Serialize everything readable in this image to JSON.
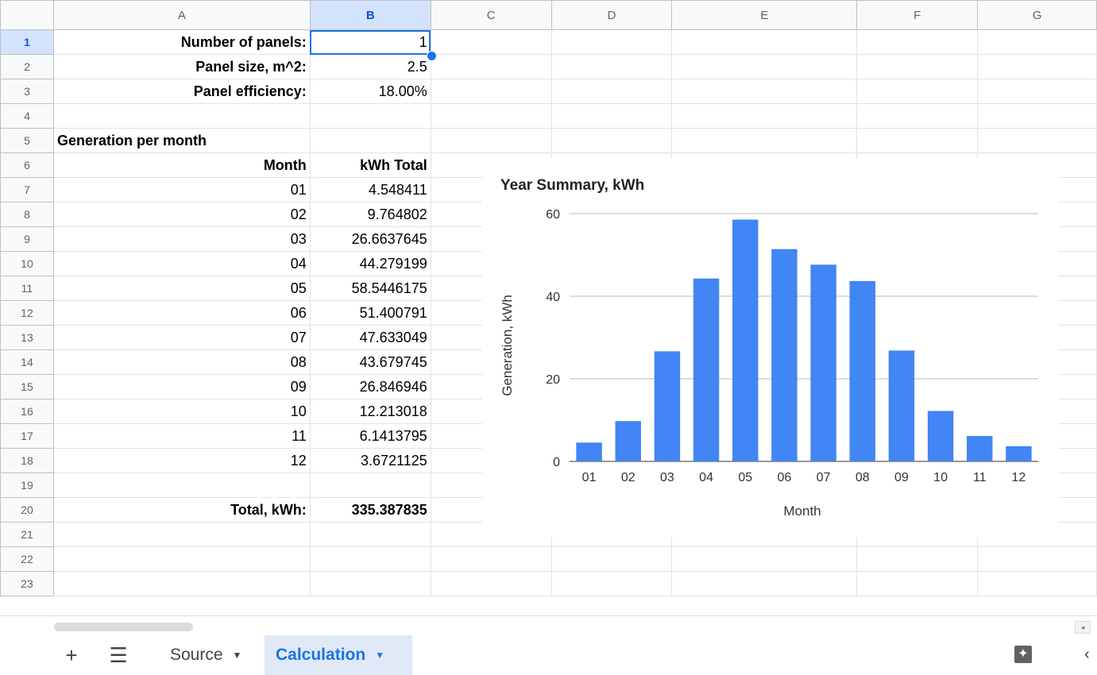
{
  "columns": [
    "A",
    "B",
    "C",
    "D",
    "E",
    "F",
    "G"
  ],
  "rows": [
    "1",
    "2",
    "3",
    "4",
    "5",
    "6",
    "7",
    "8",
    "9",
    "10",
    "11",
    "12",
    "13",
    "14",
    "15",
    "16",
    "17",
    "18",
    "19",
    "20",
    "21",
    "22",
    "23"
  ],
  "inputs": {
    "panels_label": "Number of panels:",
    "panels_value": "1",
    "size_label": "Panel size, m^2:",
    "size_value": "2.5",
    "eff_label": "Panel efficiency:",
    "eff_value": "18.00%"
  },
  "section_title": "Generation per month",
  "table_headers": {
    "month": "Month",
    "kwh": "kWh Total"
  },
  "monthly": [
    {
      "m": "01",
      "v": "4.548411"
    },
    {
      "m": "02",
      "v": "9.764802"
    },
    {
      "m": "03",
      "v": "26.6637645"
    },
    {
      "m": "04",
      "v": "44.279199"
    },
    {
      "m": "05",
      "v": "58.5446175"
    },
    {
      "m": "06",
      "v": "51.400791"
    },
    {
      "m": "07",
      "v": "47.633049"
    },
    {
      "m": "08",
      "v": "43.679745"
    },
    {
      "m": "09",
      "v": "26.846946"
    },
    {
      "m": "10",
      "v": "12.213018"
    },
    {
      "m": "11",
      "v": "6.1413795"
    },
    {
      "m": "12",
      "v": "3.6721125"
    }
  ],
  "total": {
    "label": "Total, kWh:",
    "value": "335.387835"
  },
  "chart_data": {
    "type": "bar",
    "title": "Year Summary, kWh",
    "xlabel": "Month",
    "ylabel": "Generation, kWh",
    "categories": [
      "01",
      "02",
      "03",
      "04",
      "05",
      "06",
      "07",
      "08",
      "09",
      "10",
      "11",
      "12"
    ],
    "values": [
      4.548411,
      9.764802,
      26.6637645,
      44.279199,
      58.5446175,
      51.400791,
      47.633049,
      43.679745,
      26.846946,
      12.213018,
      6.1413795,
      3.6721125
    ],
    "ylim": [
      0,
      60
    ],
    "yticks": [
      0,
      20,
      40,
      60
    ],
    "color": "#4285f4",
    "grid": true
  },
  "tabs": {
    "sheet1": "Source",
    "sheet2": "Calculation"
  },
  "icons": {
    "add": "plus-icon",
    "list": "menu-icon",
    "explore": "explore-icon"
  }
}
